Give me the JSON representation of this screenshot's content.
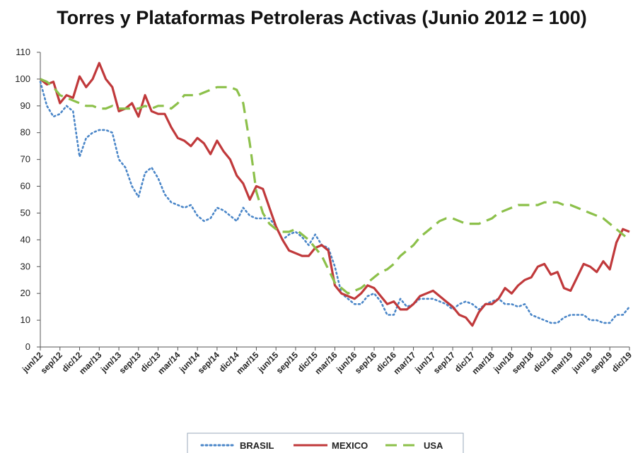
{
  "chart_data": {
    "type": "line",
    "title": "Torres y Plataformas Petroleras Activas (Junio 2012 = 100)",
    "categories": [
      "jun/12",
      null,
      null,
      "sep/12",
      null,
      null,
      "dic/12",
      null,
      null,
      "mar/13",
      null,
      null,
      "jun/13",
      null,
      null,
      "sep/13",
      null,
      null,
      "dic/13",
      null,
      null,
      "mar/14",
      null,
      null,
      "jun/14",
      null,
      null,
      "sep/14",
      null,
      null,
      "dic/14",
      null,
      null,
      "mar/15",
      null,
      null,
      "jun/15",
      null,
      null,
      "sep/15",
      null,
      null,
      "dic/15",
      null,
      null,
      "mar/16",
      null,
      null,
      "jun/16",
      null,
      null,
      "sep/16",
      null,
      null,
      "dic/16",
      null,
      null,
      "mar/17",
      null,
      null,
      "jun/17",
      null,
      null,
      "sep/17",
      null,
      null,
      "dic/17",
      null,
      null,
      "mar/18",
      null,
      null,
      "jun/18",
      null,
      null,
      "sep/18",
      null,
      null,
      "dic/18",
      null,
      null,
      "mar/19",
      null,
      null,
      "jun/19",
      null,
      null,
      "sep/19",
      null,
      null,
      "dic/19"
    ],
    "series": [
      {
        "name": "BRASIL",
        "color": "#4a86c8",
        "style": "dotted",
        "values": [
          99,
          90,
          86,
          87,
          90,
          88,
          71,
          78,
          80,
          81,
          81,
          80,
          70,
          67,
          60,
          56,
          65,
          67,
          63,
          57,
          54,
          53,
          52,
          53,
          49,
          47,
          48,
          52,
          51,
          49,
          47,
          52,
          49,
          48,
          48,
          48,
          45,
          40,
          42,
          43,
          41,
          38,
          42,
          38,
          37,
          30,
          20,
          18,
          16,
          16,
          19,
          20,
          17,
          12,
          12,
          18,
          15,
          16,
          18,
          18,
          18,
          17,
          16,
          14,
          16,
          17,
          16,
          14,
          16,
          17,
          18,
          16,
          16,
          15,
          16,
          12,
          11,
          10,
          9,
          9,
          11,
          12,
          12,
          12,
          10,
          10,
          9,
          9,
          12,
          12,
          15
        ]
      },
      {
        "name": "MEXICO",
        "color": "#c0393b",
        "style": "solid",
        "values": [
          100,
          98,
          99,
          91,
          94,
          93,
          101,
          97,
          100,
          106,
          100,
          97,
          88,
          89,
          91,
          86,
          94,
          88,
          87,
          87,
          82,
          78,
          77,
          75,
          78,
          76,
          72,
          77,
          73,
          70,
          64,
          61,
          55,
          60,
          59,
          52,
          45,
          40,
          36,
          35,
          34,
          34,
          37,
          38,
          36,
          23,
          20,
          19,
          18,
          20,
          23,
          22,
          19,
          16,
          17,
          14,
          14,
          16,
          19,
          20,
          21,
          19,
          17,
          15,
          12,
          11,
          8,
          13,
          16,
          16,
          18,
          22,
          20,
          23,
          25,
          26,
          30,
          31,
          27,
          28,
          22,
          21,
          26,
          31,
          30,
          28,
          32,
          29,
          39,
          44,
          43
        ]
      },
      {
        "name": "USA",
        "color": "#8cc04a",
        "style": "dashed",
        "values": [
          100,
          99,
          97,
          94,
          93,
          92,
          91,
          90,
          90,
          89,
          89,
          90,
          89,
          89,
          89,
          89,
          90,
          89,
          90,
          90,
          89,
          91,
          94,
          94,
          94,
          95,
          96,
          97,
          97,
          97,
          96,
          91,
          76,
          58,
          50,
          46,
          44,
          43,
          43,
          44,
          42,
          40,
          37,
          34,
          29,
          24,
          22,
          20,
          21,
          22,
          24,
          26,
          28,
          29,
          31,
          34,
          36,
          38,
          41,
          43,
          45,
          47,
          48,
          48,
          47,
          46,
          46,
          46,
          47,
          48,
          50,
          51,
          52,
          53,
          53,
          53,
          53,
          54,
          54,
          54,
          53,
          53,
          52,
          51,
          50,
          49,
          48,
          46,
          44,
          42,
          40
        ]
      }
    ],
    "ylim": [
      0,
      110
    ],
    "yticks": [
      0,
      10,
      20,
      30,
      40,
      50,
      60,
      70,
      80,
      90,
      100,
      110
    ],
    "grid": false,
    "legend": "bottom"
  }
}
